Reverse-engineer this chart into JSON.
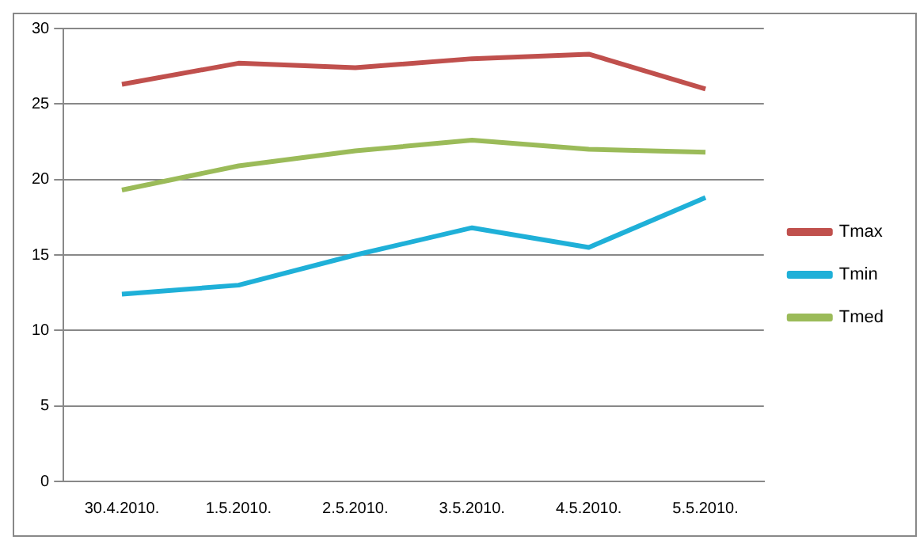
{
  "chart_data": {
    "type": "line",
    "categories": [
      "30.4.2010.",
      "1.5.2010.",
      "2.5.2010.",
      "3.5.2010.",
      "4.5.2010.",
      "5.5.2010."
    ],
    "series": [
      {
        "name": "Tmax",
        "color": "#c0504d",
        "values": [
          26.3,
          27.7,
          27.4,
          28.0,
          28.3,
          26.0
        ]
      },
      {
        "name": "Tmin",
        "color": "#1fb0d8",
        "values": [
          12.4,
          13.0,
          15.0,
          16.8,
          15.5,
          18.8
        ]
      },
      {
        "name": "Tmed",
        "color": "#9bbb59",
        "values": [
          19.3,
          20.9,
          21.9,
          22.6,
          22.0,
          21.8
        ]
      }
    ],
    "ylim": [
      0,
      30
    ],
    "yticks": [
      0,
      5,
      10,
      15,
      20,
      25,
      30
    ],
    "grid": "y",
    "legend": "right",
    "marker": "none",
    "line_style": "solid"
  }
}
